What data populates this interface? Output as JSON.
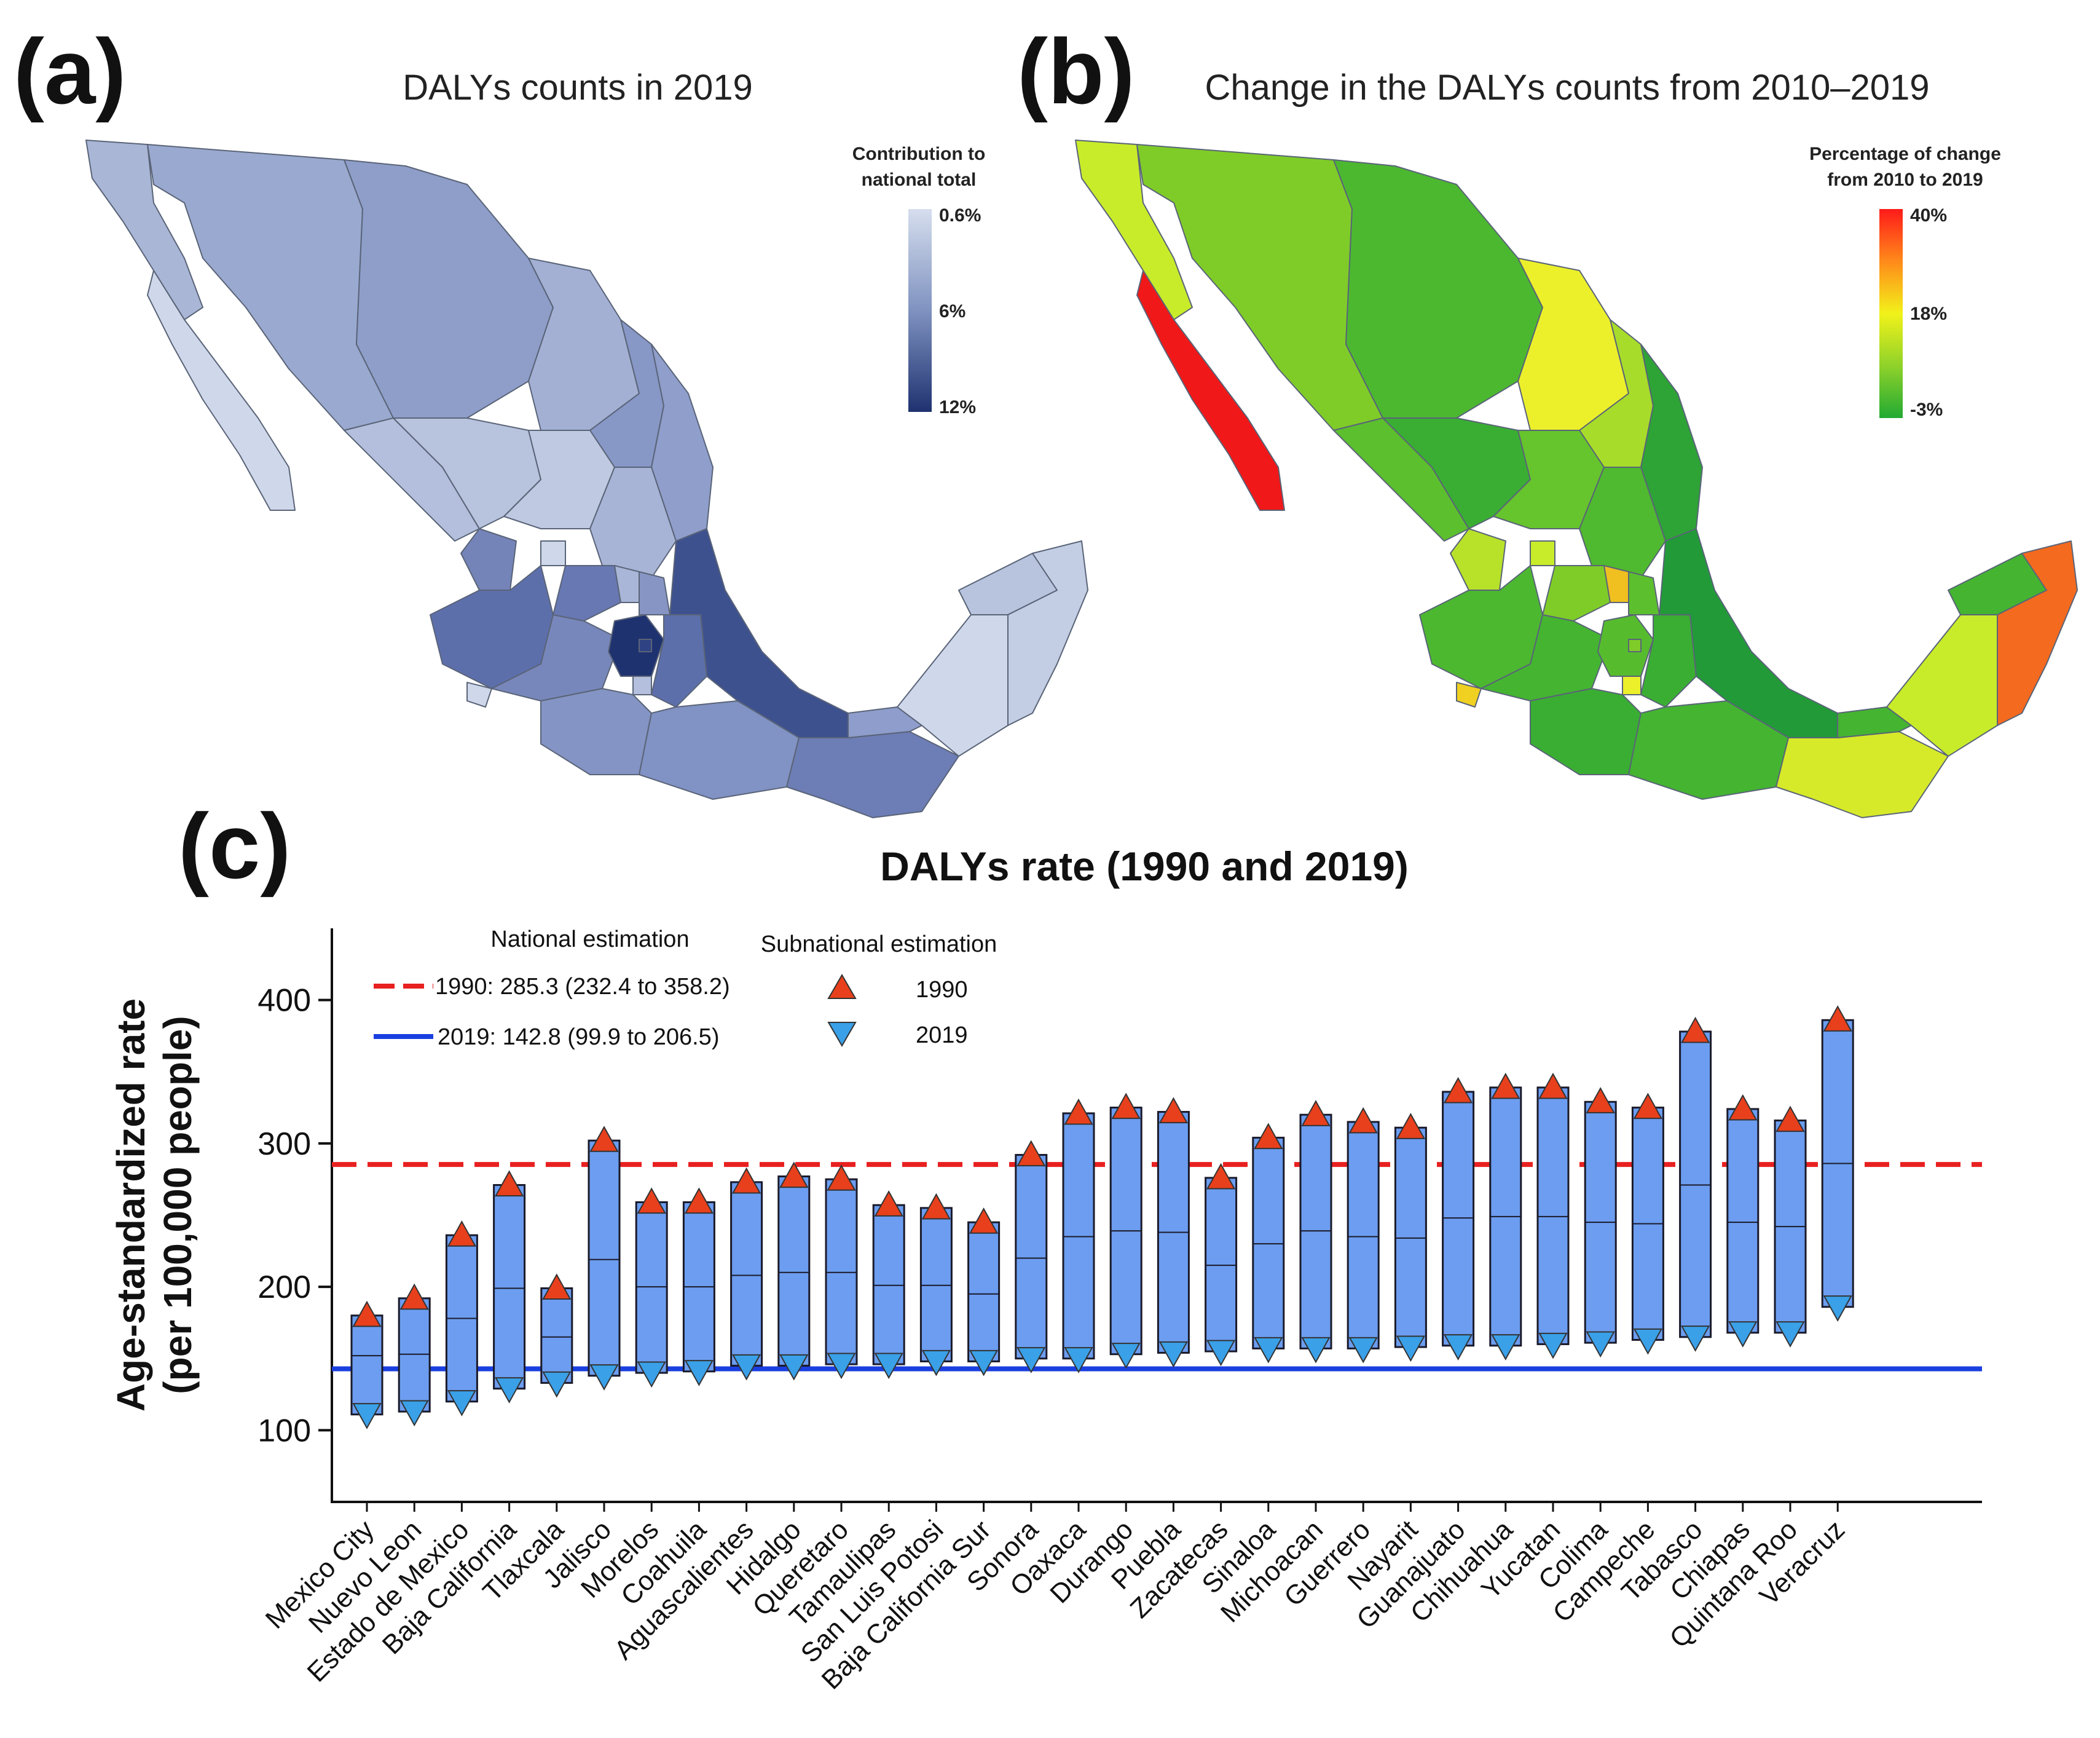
{
  "panel_a": {
    "letter": "(a)",
    "title": "DALYs counts in 2019",
    "legend_title_line1": "Contribution to",
    "legend_title_line2": "national total",
    "legend_ticks": [
      "0.6%",
      "6%",
      "12%"
    ],
    "color_low": "#cfd8ea",
    "color_mid": "#7f92c0",
    "color_high": "#1f3270"
  },
  "panel_b": {
    "letter": "(b)",
    "title": "Change in the DALYs counts from 2010–2019",
    "legend_title_line1": "Percentage of change",
    "legend_title_line2": "from 2010 to 2019",
    "legend_ticks": [
      "40%",
      "18%",
      "-3%"
    ],
    "color_high": "#ff1a1a",
    "color_mid": "#f2f21a",
    "color_low": "#22aa33"
  },
  "panel_c": {
    "letter": "(c)"
  },
  "chart_data": {
    "type": "bar",
    "title": "DALYs rate (1990 and 2019)",
    "ylabel_line1": "Age-standardized rate",
    "ylabel_line2": "(per 100,000 people)",
    "ylim": [
      50,
      450
    ],
    "yticks": [
      100,
      200,
      300,
      400
    ],
    "categories": [
      "Mexico City",
      "Nuevo Leon",
      "Estado de Mexico",
      "Baja California",
      "Tlaxcala",
      "Jalisco",
      "Morelos",
      "Coahuila",
      "Aguascalientes",
      "Hidalgo",
      "Queretaro",
      "Tamaulipas",
      "San Luis Potosi",
      "Baja California Sur",
      "Sonora",
      "Oaxaca",
      "Durango",
      "Puebla",
      "Zacatecas",
      "Sinaloa",
      "Michoacan",
      "Guerrero",
      "Nayarit",
      "Guanajuato",
      "Chihuahua",
      "Yucatan",
      "Colima",
      "Campeche",
      "Tabasco",
      "Chiapas",
      "Quintana Roo",
      "Veracruz"
    ],
    "series": [
      {
        "name": "1990",
        "marker": "triangle-up",
        "color": "#e8401c",
        "values": [
          180,
          192,
          236,
          271,
          199,
          302,
          259,
          259,
          273,
          277,
          275,
          257,
          255,
          245,
          292,
          321,
          325,
          322,
          276,
          304,
          320,
          315,
          311,
          336,
          339,
          339,
          329,
          325,
          378,
          324,
          316,
          386
        ]
      },
      {
        "name": "2019",
        "marker": "triangle-down",
        "color": "#3aa0e8",
        "values": [
          111,
          113,
          120,
          129,
          133,
          138,
          140,
          141,
          145,
          145,
          146,
          146,
          148,
          148,
          150,
          150,
          153,
          154,
          155,
          157,
          157,
          157,
          158,
          159,
          159,
          160,
          161,
          163,
          165,
          168,
          168,
          186
        ]
      }
    ],
    "midline_values": [
      152,
      153,
      178,
      199,
      165,
      219,
      200,
      200,
      208,
      210,
      210,
      201,
      201,
      195,
      220,
      235,
      239,
      238,
      215,
      230,
      239,
      235,
      234,
      248,
      249,
      249,
      245,
      244,
      271,
      245,
      242,
      286
    ],
    "bar_color": "#6c9df0",
    "national": {
      "header": "National estimation",
      "line_1990": {
        "label": "1990: 285.3 (232.4 to 358.2)",
        "value": 285.3,
        "color": "#e82020"
      },
      "line_2019": {
        "label": "2019: 142.8 (99.9 to 206.5)",
        "value": 142.8,
        "color": "#1a3fe0"
      }
    },
    "subnational": {
      "header": "Subnational estimation",
      "label_1990": "1990",
      "label_2019": "2019"
    }
  }
}
